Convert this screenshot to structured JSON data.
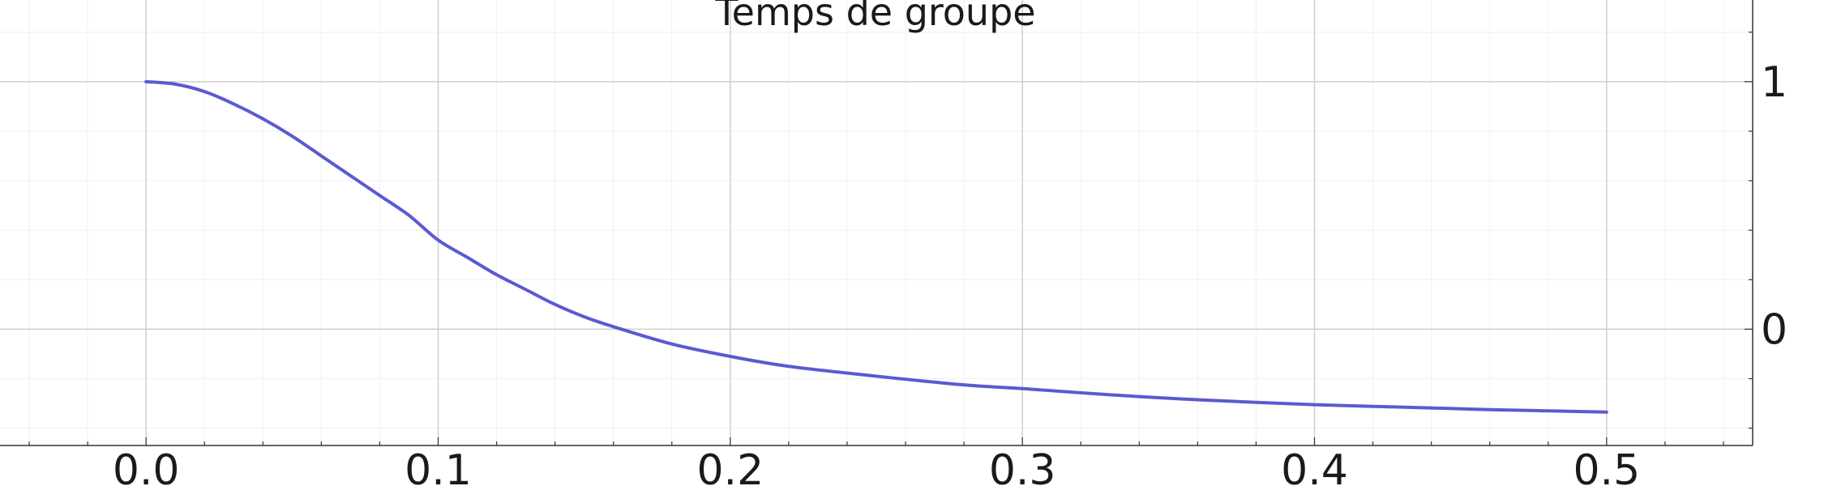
{
  "chart_data": {
    "type": "line",
    "title": "Temps de groupe",
    "xlabel": "",
    "ylabel": "",
    "xlim": [
      -0.05,
      0.55
    ],
    "ylim": [
      -0.47,
      1.33
    ],
    "x_ticks": [
      0.0,
      0.1,
      0.2,
      0.3,
      0.4,
      0.5
    ],
    "x_tick_labels": [
      "0.0",
      "0.1",
      "0.2",
      "0.3",
      "0.4",
      "0.5"
    ],
    "y_ticks": [
      0,
      1
    ],
    "y_tick_labels": [
      "0",
      "1"
    ],
    "y_axis_side": "right",
    "grid": true,
    "line_color": "#5a5ad2",
    "series": [
      {
        "x": [
          0.0,
          0.01,
          0.02,
          0.03,
          0.04,
          0.05,
          0.06,
          0.07,
          0.08,
          0.09,
          0.1,
          0.11,
          0.12,
          0.13,
          0.14,
          0.15,
          0.16,
          0.18,
          0.2,
          0.22,
          0.25,
          0.28,
          0.3,
          0.33,
          0.36,
          0.4,
          0.43,
          0.46,
          0.5
        ],
        "values": [
          1.0,
          0.99,
          0.96,
          0.91,
          0.85,
          0.78,
          0.7,
          0.62,
          0.54,
          0.46,
          0.36,
          0.29,
          0.22,
          0.16,
          0.1,
          0.05,
          0.01,
          -0.06,
          -0.11,
          -0.15,
          -0.19,
          -0.225,
          -0.24,
          -0.265,
          -0.285,
          -0.305,
          -0.315,
          -0.325,
          -0.335
        ]
      }
    ]
  }
}
